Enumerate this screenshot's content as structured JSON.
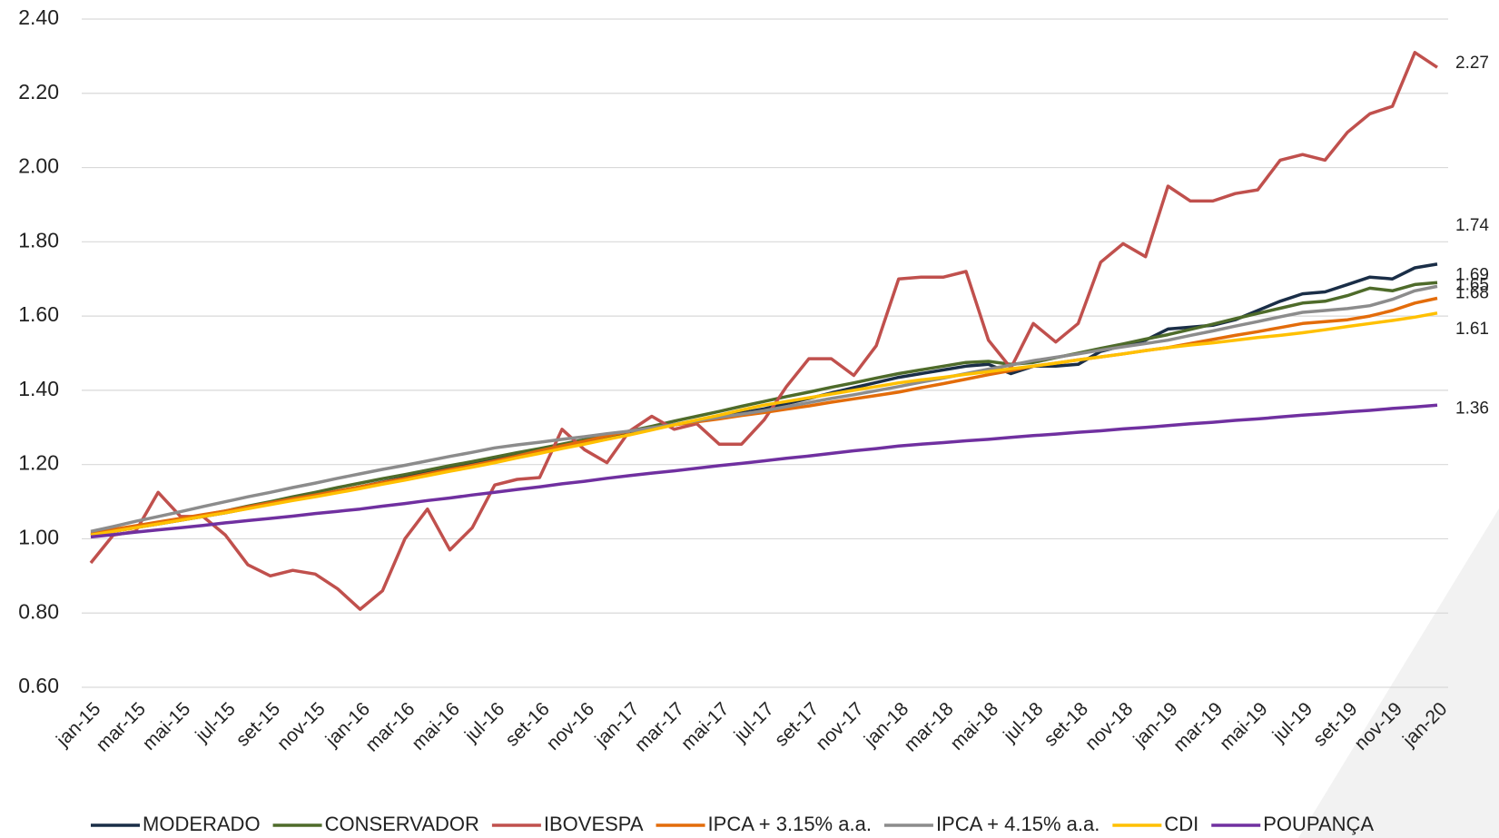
{
  "chart_data": {
    "type": "line",
    "categories": [
      "jan-15",
      null,
      "mar-15",
      null,
      "mai-15",
      null,
      "jul-15",
      null,
      "set-15",
      null,
      "nov-15",
      null,
      "jan-16",
      null,
      "mar-16",
      null,
      "mai-16",
      null,
      "jul-16",
      null,
      "set-16",
      null,
      "nov-16",
      null,
      "jan-17",
      null,
      "mar-17",
      null,
      "mai-17",
      null,
      "jul-17",
      null,
      "set-17",
      null,
      "nov-17",
      null,
      "jan-18",
      null,
      "mar-18",
      null,
      "mai-18",
      null,
      "jul-18",
      null,
      "set-18",
      null,
      "nov-18",
      null,
      "jan-19",
      null,
      "mar-19",
      null,
      "mai-19",
      null,
      "jul-19",
      null,
      "set-19",
      null,
      "nov-19",
      null,
      "jan-20"
    ],
    "ylim": [
      0.6,
      2.4
    ],
    "yticks": [
      {
        "value": 0.6,
        "label": "0.60"
      },
      {
        "value": 0.8,
        "label": "0.80"
      },
      {
        "value": 1.0,
        "label": "1.00"
      },
      {
        "value": 1.2,
        "label": "1.20"
      },
      {
        "value": 1.4,
        "label": "1.40"
      },
      {
        "value": 1.6,
        "label": "1.60"
      },
      {
        "value": 1.8,
        "label": "1.80"
      },
      {
        "value": 2.0,
        "label": "2.00"
      },
      {
        "value": 2.2,
        "label": "2.20"
      },
      {
        "value": 2.4,
        "label": "2.40"
      }
    ],
    "grid": true,
    "legend": "bottom",
    "series": [
      {
        "name": "MODERADO",
        "color": "#1a2e47",
        "values": [
          1.01,
          1.02,
          1.03,
          1.04,
          1.05,
          1.06,
          1.07,
          1.082,
          1.093,
          1.105,
          1.117,
          1.128,
          1.14,
          1.153,
          1.165,
          1.178,
          1.19,
          1.203,
          1.215,
          1.227,
          1.238,
          1.25,
          1.262,
          1.273,
          1.285,
          1.296,
          1.307,
          1.318,
          1.328,
          1.339,
          1.35,
          1.364,
          1.378,
          1.393,
          1.407,
          1.421,
          1.435,
          1.445,
          1.455,
          1.465,
          1.47,
          1.445,
          1.465,
          1.465,
          1.47,
          1.505,
          1.52,
          1.535,
          1.565,
          1.57,
          1.575,
          1.59,
          1.615,
          1.64,
          1.66,
          1.665,
          1.685,
          1.705,
          1.7,
          1.73,
          1.74
        ],
        "value_labels": [
          null,
          null,
          null,
          null,
          null,
          null,
          null,
          null,
          null,
          null,
          null,
          null,
          null,
          null,
          null,
          null,
          null,
          null,
          null,
          null,
          null,
          null,
          null,
          null,
          null,
          null,
          null,
          null,
          null,
          null,
          null,
          null,
          null,
          null,
          null,
          null,
          null,
          null,
          null,
          null,
          null,
          null,
          null,
          null,
          null,
          null,
          null,
          null,
          null,
          null,
          null,
          null,
          null,
          null,
          null,
          null,
          null,
          null,
          null,
          null,
          "1.74"
        ]
      },
      {
        "name": "CONSERVADOR",
        "color": "#4e6b2a",
        "values": [
          1.01,
          1.021,
          1.032,
          1.043,
          1.053,
          1.064,
          1.075,
          1.088,
          1.1,
          1.113,
          1.125,
          1.138,
          1.15,
          1.162,
          1.173,
          1.185,
          1.197,
          1.208,
          1.22,
          1.232,
          1.243,
          1.255,
          1.267,
          1.278,
          1.29,
          1.303,
          1.317,
          1.33,
          1.343,
          1.357,
          1.37,
          1.383,
          1.395,
          1.408,
          1.42,
          1.433,
          1.445,
          1.455,
          1.465,
          1.475,
          1.478,
          1.47,
          1.475,
          1.488,
          1.5,
          1.513,
          1.525,
          1.538,
          1.55,
          1.564,
          1.578,
          1.593,
          1.607,
          1.621,
          1.635,
          1.64,
          1.655,
          1.675,
          1.668,
          1.685,
          1.69
        ],
        "value_labels": [
          null,
          null,
          null,
          null,
          null,
          null,
          null,
          null,
          null,
          null,
          null,
          null,
          null,
          null,
          null,
          null,
          null,
          null,
          null,
          null,
          null,
          null,
          null,
          null,
          null,
          null,
          null,
          null,
          null,
          null,
          null,
          null,
          null,
          null,
          null,
          null,
          null,
          null,
          null,
          null,
          null,
          null,
          null,
          null,
          null,
          null,
          null,
          null,
          null,
          null,
          null,
          null,
          null,
          null,
          null,
          null,
          null,
          null,
          null,
          null,
          "1.69"
        ]
      },
      {
        "name": "IBOVESPA",
        "color": "#c0504d",
        "values": [
          0.935,
          1.01,
          1.02,
          1.125,
          1.06,
          1.06,
          1.01,
          0.93,
          0.9,
          0.915,
          0.905,
          0.865,
          0.81,
          0.86,
          1.0,
          1.08,
          0.97,
          1.03,
          1.145,
          1.16,
          1.165,
          1.295,
          1.24,
          1.205,
          1.29,
          1.33,
          1.295,
          1.31,
          1.255,
          1.255,
          1.32,
          1.41,
          1.485,
          1.485,
          1.44,
          1.52,
          1.7,
          1.705,
          1.705,
          1.72,
          1.535,
          1.46,
          1.58,
          1.53,
          1.58,
          1.745,
          1.795,
          1.76,
          1.95,
          1.91,
          1.91,
          1.93,
          1.94,
          2.02,
          2.035,
          2.02,
          2.095,
          2.145,
          2.165,
          2.31,
          2.27
        ],
        "value_labels": [
          null,
          null,
          null,
          null,
          null,
          null,
          null,
          null,
          null,
          null,
          null,
          null,
          null,
          null,
          null,
          null,
          null,
          null,
          null,
          null,
          null,
          null,
          null,
          null,
          null,
          null,
          null,
          null,
          null,
          null,
          null,
          null,
          null,
          null,
          null,
          null,
          null,
          null,
          null,
          null,
          null,
          null,
          null,
          null,
          null,
          null,
          null,
          null,
          null,
          null,
          null,
          null,
          null,
          null,
          null,
          null,
          null,
          null,
          null,
          null,
          "2.27"
        ]
      },
      {
        "name": "IPCA + 3.15% a.a.",
        "color": "#e36c0a",
        "values": [
          1.015,
          1.025,
          1.035,
          1.045,
          1.055,
          1.065,
          1.075,
          1.086,
          1.097,
          1.108,
          1.118,
          1.129,
          1.14,
          1.152,
          1.163,
          1.175,
          1.187,
          1.198,
          1.21,
          1.223,
          1.237,
          1.25,
          1.263,
          1.277,
          1.29,
          1.298,
          1.307,
          1.315,
          1.323,
          1.332,
          1.34,
          1.349,
          1.358,
          1.368,
          1.377,
          1.386,
          1.395,
          1.407,
          1.418,
          1.43,
          1.442,
          1.453,
          1.465,
          1.473,
          1.482,
          1.49,
          1.498,
          1.507,
          1.515,
          1.526,
          1.537,
          1.548,
          1.558,
          1.569,
          1.58,
          1.585,
          1.59,
          1.6,
          1.615,
          1.635,
          1.648
        ],
        "value_labels": [
          null,
          null,
          null,
          null,
          null,
          null,
          null,
          null,
          null,
          null,
          null,
          null,
          null,
          null,
          null,
          null,
          null,
          null,
          null,
          null,
          null,
          null,
          null,
          null,
          null,
          null,
          null,
          null,
          null,
          null,
          null,
          null,
          null,
          null,
          null,
          null,
          null,
          null,
          null,
          null,
          null,
          null,
          null,
          null,
          null,
          null,
          null,
          null,
          null,
          null,
          null,
          null,
          null,
          null,
          null,
          null,
          null,
          null,
          null,
          null,
          "1.65"
        ]
      },
      {
        "name": "IPCA + 4.15% a.a.",
        "color": "#8c8c8c",
        "values": [
          1.02,
          1.033,
          1.047,
          1.06,
          1.073,
          1.087,
          1.1,
          1.113,
          1.125,
          1.138,
          1.15,
          1.163,
          1.175,
          1.187,
          1.198,
          1.21,
          1.222,
          1.233,
          1.245,
          1.253,
          1.26,
          1.268,
          1.275,
          1.283,
          1.29,
          1.299,
          1.308,
          1.318,
          1.327,
          1.336,
          1.345,
          1.356,
          1.367,
          1.378,
          1.388,
          1.399,
          1.41,
          1.422,
          1.433,
          1.445,
          1.457,
          1.468,
          1.48,
          1.489,
          1.498,
          1.508,
          1.517,
          1.526,
          1.535,
          1.548,
          1.56,
          1.573,
          1.585,
          1.598,
          1.61,
          1.615,
          1.62,
          1.628,
          1.645,
          1.668,
          1.68
        ],
        "value_labels": [
          null,
          null,
          null,
          null,
          null,
          null,
          null,
          null,
          null,
          null,
          null,
          null,
          null,
          null,
          null,
          null,
          null,
          null,
          null,
          null,
          null,
          null,
          null,
          null,
          null,
          null,
          null,
          null,
          null,
          null,
          null,
          null,
          null,
          null,
          null,
          null,
          null,
          null,
          null,
          null,
          null,
          null,
          null,
          null,
          null,
          null,
          null,
          null,
          null,
          null,
          null,
          null,
          null,
          null,
          null,
          null,
          null,
          null,
          null,
          null,
          "1.68"
        ]
      },
      {
        "name": "CDI",
        "color": "#ffc000",
        "values": [
          1.01,
          1.02,
          1.03,
          1.04,
          1.05,
          1.06,
          1.07,
          1.081,
          1.092,
          1.103,
          1.113,
          1.124,
          1.135,
          1.147,
          1.158,
          1.17,
          1.182,
          1.193,
          1.205,
          1.218,
          1.23,
          1.243,
          1.255,
          1.268,
          1.28,
          1.293,
          1.307,
          1.32,
          1.333,
          1.347,
          1.36,
          1.37,
          1.38,
          1.39,
          1.4,
          1.41,
          1.42,
          1.428,
          1.435,
          1.443,
          1.45,
          1.458,
          1.465,
          1.473,
          1.482,
          1.49,
          1.498,
          1.507,
          1.515,
          1.522,
          1.528,
          1.535,
          1.542,
          1.548,
          1.555,
          1.563,
          1.572,
          1.58,
          1.588,
          1.597,
          1.608
        ],
        "value_labels": [
          null,
          null,
          null,
          null,
          null,
          null,
          null,
          null,
          null,
          null,
          null,
          null,
          null,
          null,
          null,
          null,
          null,
          null,
          null,
          null,
          null,
          null,
          null,
          null,
          null,
          null,
          null,
          null,
          null,
          null,
          null,
          null,
          null,
          null,
          null,
          null,
          null,
          null,
          null,
          null,
          null,
          null,
          null,
          null,
          null,
          null,
          null,
          null,
          null,
          null,
          null,
          null,
          null,
          null,
          null,
          null,
          null,
          null,
          null,
          null,
          "1.61"
        ]
      },
      {
        "name": "POUPANÇA",
        "color": "#7030a0",
        "values": [
          1.005,
          1.011,
          1.018,
          1.024,
          1.03,
          1.036,
          1.043,
          1.049,
          1.055,
          1.061,
          1.068,
          1.074,
          1.08,
          1.088,
          1.095,
          1.103,
          1.11,
          1.118,
          1.125,
          1.133,
          1.14,
          1.148,
          1.155,
          1.163,
          1.17,
          1.177,
          1.183,
          1.19,
          1.197,
          1.203,
          1.21,
          1.217,
          1.223,
          1.23,
          1.237,
          1.243,
          1.25,
          1.255,
          1.259,
          1.264,
          1.268,
          1.273,
          1.278,
          1.282,
          1.287,
          1.291,
          1.296,
          1.3,
          1.305,
          1.31,
          1.314,
          1.319,
          1.323,
          1.328,
          1.333,
          1.337,
          1.342,
          1.346,
          1.351,
          1.355,
          1.36
        ],
        "value_labels": [
          null,
          null,
          null,
          null,
          null,
          null,
          null,
          null,
          null,
          null,
          null,
          null,
          null,
          null,
          null,
          null,
          null,
          null,
          null,
          null,
          null,
          null,
          null,
          null,
          null,
          null,
          null,
          null,
          null,
          null,
          null,
          null,
          null,
          null,
          null,
          null,
          null,
          null,
          null,
          null,
          null,
          null,
          null,
          null,
          null,
          null,
          null,
          null,
          null,
          null,
          null,
          null,
          null,
          null,
          null,
          null,
          null,
          null,
          null,
          null,
          "1.36"
        ]
      }
    ]
  }
}
